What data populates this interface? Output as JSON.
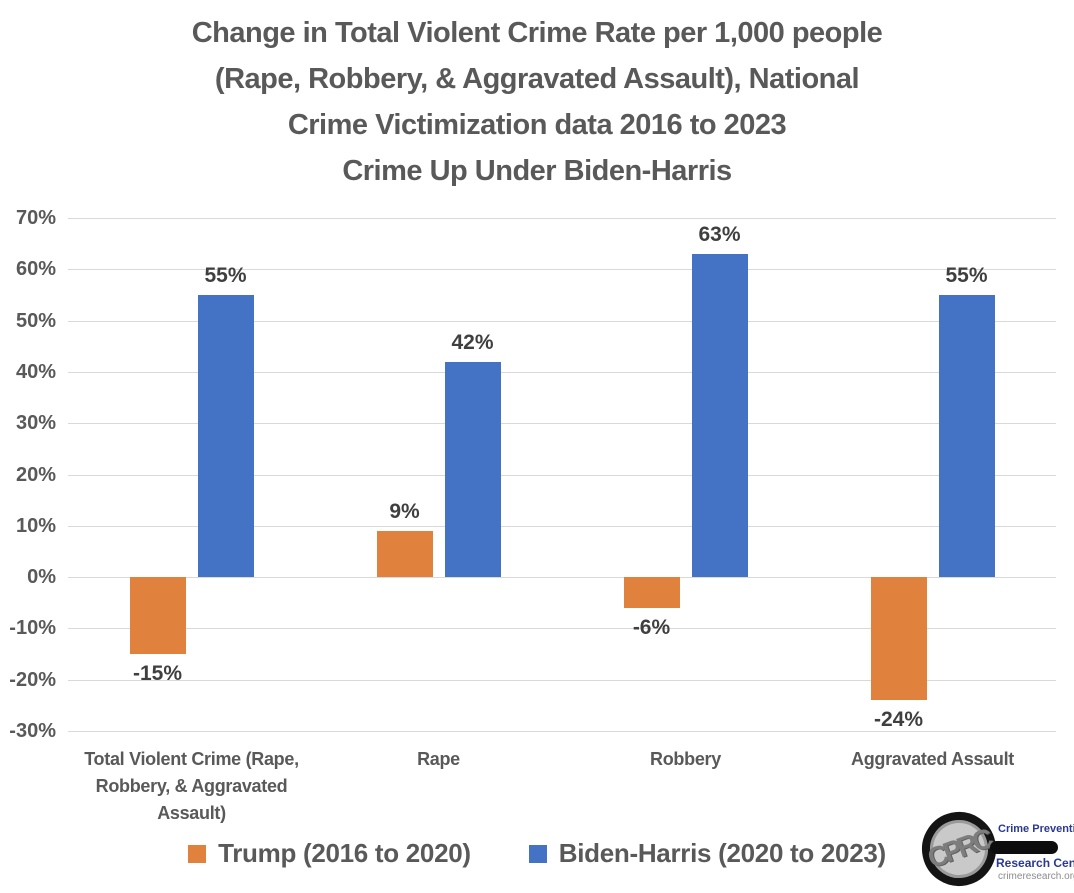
{
  "header": {
    "title_lines": [
      "Change in Total Violent Crime Rate per 1,000 people",
      "(Rape, Robbery, & Aggravated Assault), National",
      "Crime Victimization data 2016 to 2023",
      "Crime Up Under Biden-Harris"
    ]
  },
  "chart_data": {
    "type": "bar",
    "title": "Change in Total Violent Crime Rate per 1,000 people (Rape, Robbery, & Aggravated Assault), National Crime Victimization data 2016 to 2023 — Crime Up Under Biden-Harris",
    "categories": [
      "Total Violent Crime (Rape, Robbery, & Aggravated Assault)",
      "Rape",
      "Robbery",
      "Aggravated Assault"
    ],
    "series": [
      {
        "name": "Trump (2016 to 2020)",
        "color": "#E0823E",
        "values": [
          -15,
          9,
          -6,
          -24
        ]
      },
      {
        "name": "Biden-Harris (2020 to 2023)",
        "color": "#4472C4",
        "values": [
          55,
          42,
          63,
          55
        ]
      }
    ],
    "value_labels": [
      [
        "-15%",
        "9%",
        "-6%",
        "-24%"
      ],
      [
        "55%",
        "42%",
        "63%",
        "55%"
      ]
    ],
    "xlabel": "",
    "ylabel": "",
    "ylim": [
      -30,
      70
    ],
    "ytick_step": 10,
    "ytick_labels": [
      "70%",
      "60%",
      "50%",
      "40%",
      "30%",
      "20%",
      "10%",
      "0%",
      "-10%",
      "-20%",
      "-30%"
    ],
    "grid": true,
    "legend_position": "bottom"
  },
  "logo": {
    "monogram": "CPRC",
    "org_line1": "Crime Prevention",
    "org_line2": "Research Center",
    "url": "crimeresearch.org"
  },
  "colors": {
    "trump_orange": "#E0823E",
    "biden_blue": "#4472C4",
    "title_gray": "#595959",
    "value_label_dark": "#3F3F3F",
    "grid_gray": "#D9D9D9",
    "logo_navy": "#2B3990"
  }
}
